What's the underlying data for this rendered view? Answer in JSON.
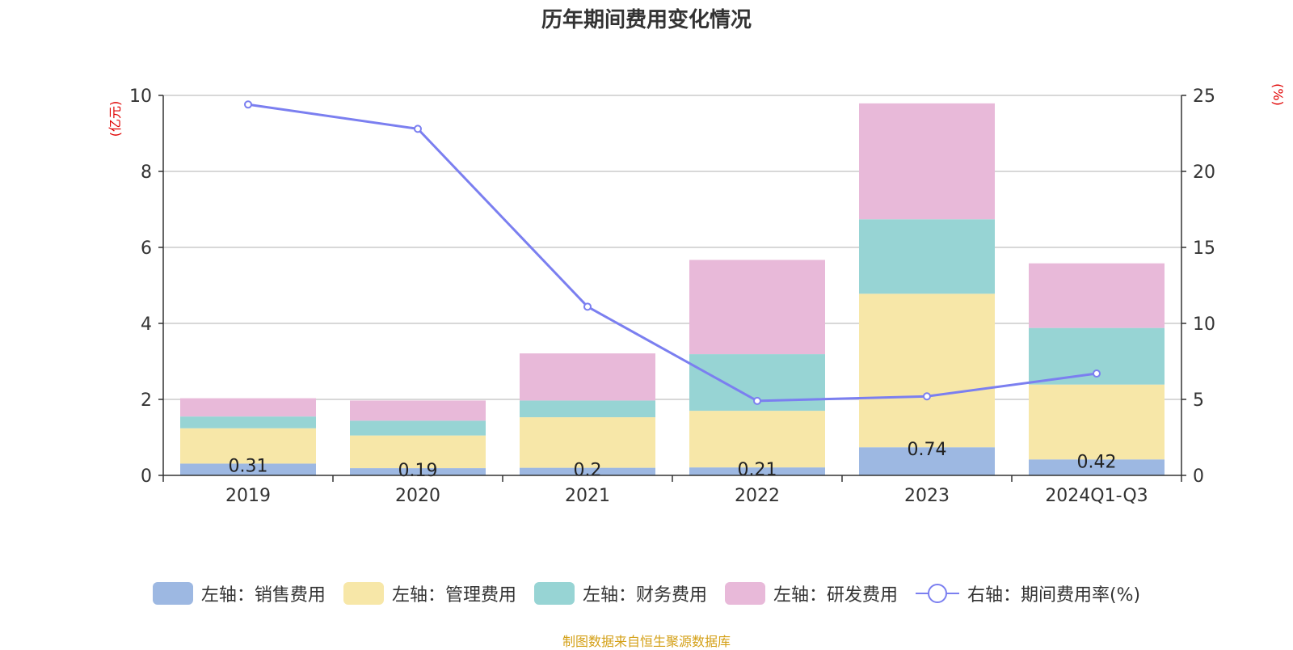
{
  "chart_data": {
    "type": "bar",
    "stacked": true,
    "title": "历年期间费用变化情况",
    "categories": [
      "2019",
      "2020",
      "2021",
      "2022",
      "2023",
      "2024Q1-Q3"
    ],
    "left_axis": {
      "label": "(亿元)",
      "range": [
        0,
        10
      ],
      "ticks": [
        "0",
        "2",
        "4",
        "6",
        "8",
        "10"
      ]
    },
    "right_axis": {
      "label": "(%)",
      "range": [
        0,
        25
      ],
      "ticks": [
        "0",
        "5",
        "10",
        "15",
        "20",
        "25"
      ]
    },
    "series": [
      {
        "name": "左轴：销售费用",
        "color": "#9db8e2",
        "values": [
          0.31,
          0.19,
          0.2,
          0.21,
          0.74,
          0.42
        ],
        "labels": [
          "0.31",
          "0.19",
          "0.2",
          "0.21",
          "0.74",
          "0.42"
        ]
      },
      {
        "name": "左轴：管理费用",
        "color": "#f7e7a8",
        "values": [
          0.93,
          0.86,
          1.33,
          1.49,
          4.04,
          1.97
        ]
      },
      {
        "name": "左轴：财务费用",
        "color": "#97d4d4",
        "values": [
          0.31,
          0.39,
          0.44,
          1.49,
          1.96,
          1.49
        ]
      },
      {
        "name": "左轴：研发费用",
        "color": "#e8b9d9",
        "values": [
          0.48,
          0.53,
          1.24,
          2.48,
          3.05,
          1.7
        ]
      }
    ],
    "line_series": {
      "name": "右轴：期间费用率(%)",
      "color": "#7b7ff0",
      "values": [
        24.4,
        22.8,
        11.1,
        4.9,
        5.2,
        6.7
      ]
    },
    "legend_position": "bottom",
    "grid": true
  },
  "source": "制图数据来自恒生聚源数据库"
}
